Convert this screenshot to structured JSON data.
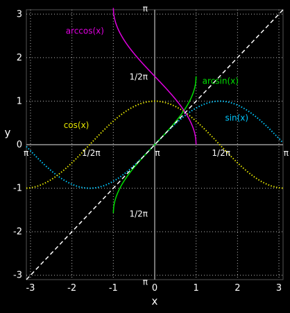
{
  "chart_data": {
    "type": "line",
    "title": "",
    "xlabel": "x",
    "ylabel": "y",
    "xlim": [
      -3.1,
      3.1
    ],
    "ylim": [
      -3.1,
      3.1
    ],
    "grid": true,
    "x_ticks": [
      -3,
      -2,
      -1,
      0,
      1,
      2,
      3
    ],
    "y_ticks": [
      -3,
      -2,
      -1,
      0,
      1,
      2,
      3
    ],
    "x_tick_labels": [
      "-3",
      "-2",
      "-1",
      "0",
      "1",
      "2",
      "3"
    ],
    "y_tick_labels": [
      "-3",
      "-2",
      "-1",
      "0",
      "1",
      "2",
      "3"
    ],
    "series": [
      {
        "name": "sin(x)",
        "function": "sin",
        "domain": [
          -3.1,
          3.1
        ],
        "color": "#00c8ff",
        "style": "dotted"
      },
      {
        "name": "cos(x)",
        "function": "cos",
        "domain": [
          -3.1,
          3.1
        ],
        "color": "#e6e600",
        "style": "dotted"
      },
      {
        "name": "arcsin(x)",
        "function": "arcsin",
        "domain": [
          -1,
          1
        ],
        "color": "#00e000",
        "style": "solid"
      },
      {
        "name": "arccos(x)",
        "function": "arccos",
        "domain": [
          -1,
          1
        ],
        "color": "#e000e0",
        "style": "solid"
      },
      {
        "name": "",
        "function": "identity",
        "domain": [
          -3.1,
          3.1
        ],
        "color": "#ffffff",
        "style": "dashed"
      }
    ],
    "annotations": [
      {
        "text": "π",
        "x": -3.14,
        "y": 0
      },
      {
        "text": "1/2π",
        "x": -1.57,
        "y": 0
      },
      {
        "text": "π",
        "x": 0,
        "y": 0
      },
      {
        "text": "1/2π",
        "x": 1.57,
        "y": 0
      },
      {
        "text": "π",
        "x": 3.14,
        "y": 0
      },
      {
        "text": "1/2π",
        "x": 0,
        "y": 1.57
      },
      {
        "text": "1/2π",
        "x": 0,
        "y": -1.57
      },
      {
        "text": "π",
        "x": 0,
        "y": 3.14
      },
      {
        "text": "π",
        "x": 0,
        "y": -3.14
      }
    ]
  }
}
